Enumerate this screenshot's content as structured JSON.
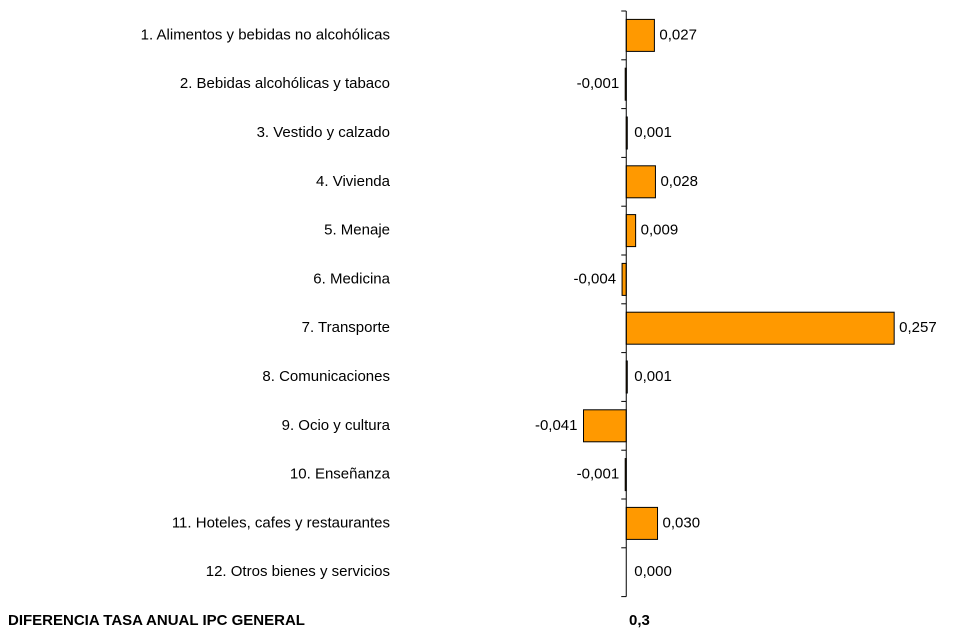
{
  "chart_data": {
    "type": "bar",
    "orientation": "horizontal",
    "categories": [
      "1. Alimentos y bebidas no alcohólicas",
      "2. Bebidas alcohólicas y tabaco",
      "3. Vestido y calzado",
      "4. Vivienda",
      "5. Menaje",
      "6. Medicina",
      "7. Transporte",
      "8. Comunicaciones",
      "9. Ocio y cultura",
      "10. Enseñanza",
      "11. Hoteles, cafes y restaurantes",
      "12. Otros bienes y servicios"
    ],
    "values": [
      0.027,
      -0.001,
      0.001,
      0.028,
      0.009,
      -0.004,
      0.257,
      0.001,
      -0.041,
      -0.001,
      0.03,
      0.0
    ],
    "value_labels": [
      "0,027",
      "-0,001",
      "0,001",
      "0,028",
      "0,009",
      "-0,004",
      "0,257",
      "0,001",
      "-0,041",
      "-0,001",
      "0,030",
      "0,000"
    ],
    "color": "#ff9900",
    "xlim": [
      -0.1,
      0.3
    ],
    "total": {
      "label": "DIFERENCIA TASA ANUAL IPC GENERAL",
      "value": 0.3,
      "value_label": "0,3"
    }
  }
}
